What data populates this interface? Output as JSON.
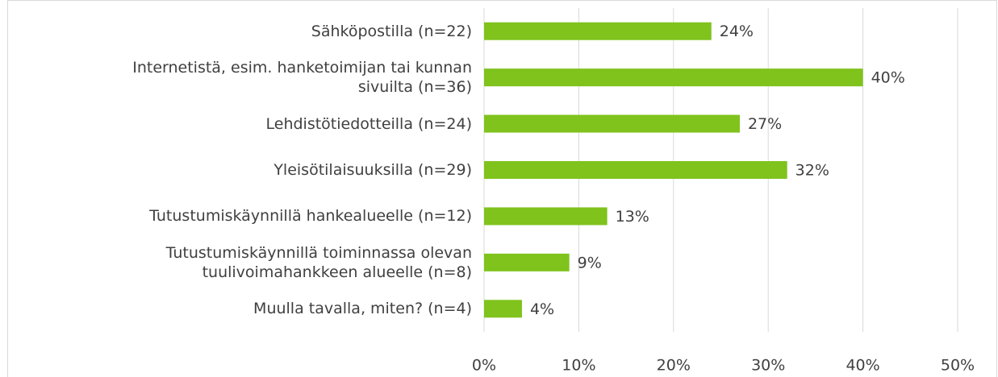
{
  "chart_data": {
    "type": "bar",
    "orientation": "horizontal",
    "categories": [
      "Sähköpostilla (n=22)",
      "Internetistä, esim. hanketoimijan tai kunnan\nsivuilta (n=36)",
      "Lehdistötiedotteilla (n=24)",
      "Yleisötilaisuuksilla (n=29)",
      "Tutustumiskäynnillä hankealueelle (n=12)",
      "Tutustumiskäynnillä toiminnassa olevan\ntuulivoimahankkeen alueelle (n=8)",
      "Muulla tavalla, miten? (n=4)"
    ],
    "values": [
      24,
      40,
      27,
      32,
      13,
      9,
      4
    ],
    "value_labels": [
      "24%",
      "40%",
      "27%",
      "32%",
      "13%",
      "9%",
      "4%"
    ],
    "color": "#7fc31c",
    "xlim": [
      0,
      50
    ],
    "xticks": [
      {
        "value": 0,
        "label": "0%"
      },
      {
        "value": 10,
        "label": "10%"
      },
      {
        "value": 20,
        "label": "20%"
      },
      {
        "value": 30,
        "label": "30%"
      },
      {
        "value": 40,
        "label": "40%"
      },
      {
        "value": 50,
        "label": "50%"
      }
    ],
    "grid": true
  }
}
